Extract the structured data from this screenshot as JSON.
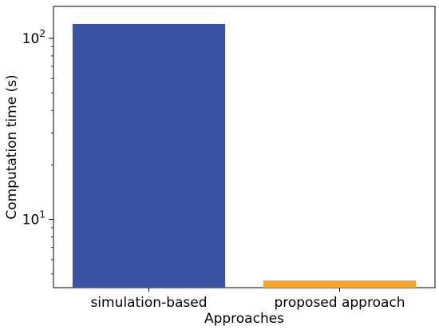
{
  "chart_data": {
    "type": "bar",
    "categories": [
      "simulation-based",
      "proposed approach"
    ],
    "values": [
      120,
      4.6
    ],
    "colors": [
      "#3a53a4",
      "#f6a623"
    ],
    "xlabel": "Approaches",
    "ylabel": "Computation time (s)",
    "yscale": "log",
    "ylim": [
      4.2,
      150
    ],
    "yticks": [
      {
        "value": 10,
        "base": "10",
        "exp": "1"
      },
      {
        "value": 100,
        "base": "10",
        "exp": "2"
      }
    ],
    "grid": false
  }
}
